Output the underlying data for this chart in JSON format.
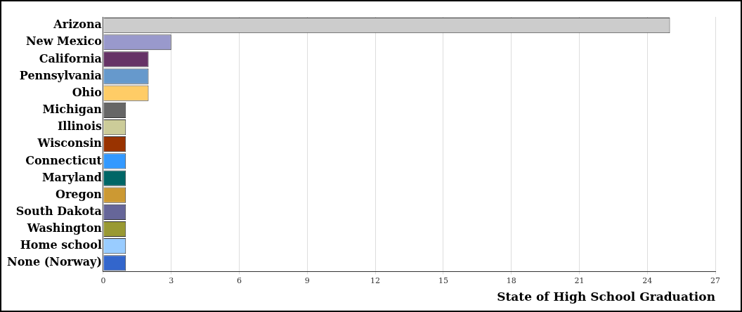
{
  "chart_data": {
    "type": "bar",
    "orientation": "horizontal",
    "xlabel": "State of High School Graduation",
    "categories": [
      "Arizona",
      "New Mexico",
      "California",
      "Pennsylvania",
      "Ohio",
      "Michigan",
      "Illinois",
      "Wisconsin",
      "Connecticut",
      "Maryland",
      "Oregon",
      "South Dakota",
      "Washington",
      "Home school",
      "None (Norway)"
    ],
    "values": [
      25,
      3,
      2,
      2,
      2,
      1,
      1,
      1,
      1,
      1,
      1,
      1,
      1,
      1,
      1
    ],
    "colors": [
      "#cccccc",
      "#9999cc",
      "#663366",
      "#6699cc",
      "#ffcc66",
      "#666666",
      "#cccc99",
      "#993300",
      "#3399ff",
      "#006666",
      "#cc9933",
      "#666699",
      "#999933",
      "#99ccff",
      "#3366cc"
    ],
    "xlim": [
      0,
      27
    ],
    "xticks": [
      0,
      3,
      6,
      9,
      12,
      15,
      18,
      21,
      24,
      27
    ],
    "grid": "x",
    "legend": false
  }
}
